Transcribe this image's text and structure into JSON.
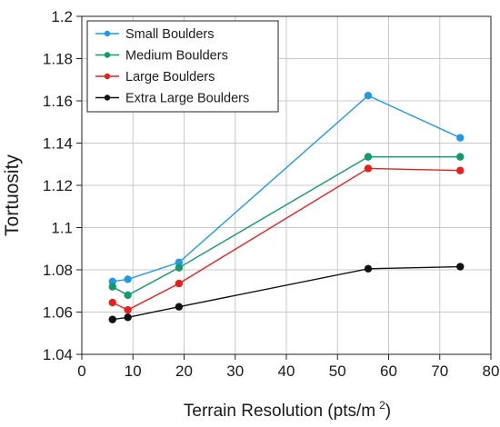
{
  "chart_data": {
    "type": "line",
    "xlabel": "Terrain Resolution (pts/m",
    "xlabel_sup": "2",
    "xlabel_suffix": ")",
    "ylabel": "Tortuosity",
    "xlim": [
      0,
      80
    ],
    "ylim": [
      1.04,
      1.2
    ],
    "x_ticks": [
      0,
      10,
      20,
      30,
      40,
      50,
      60,
      70,
      80
    ],
    "y_ticks": [
      1.04,
      1.06,
      1.08,
      1.1,
      1.12,
      1.14,
      1.16,
      1.18,
      1.2
    ],
    "x_tick_labels": [
      "0",
      "10",
      "20",
      "30",
      "40",
      "50",
      "60",
      "70",
      "80"
    ],
    "y_tick_labels": [
      "1.04",
      "1.06",
      "1.08",
      "1.1",
      "1.12",
      "1.14",
      "1.16",
      "1.18",
      "1.2"
    ],
    "grid": true,
    "legend_position": "top-left",
    "series": [
      {
        "name": "Small Boulders",
        "color": "#1f9be6",
        "x": [
          6,
          9,
          19,
          56,
          74
        ],
        "y": [
          1.0745,
          1.0755,
          1.0835,
          1.1625,
          1.1425
        ]
      },
      {
        "name": "Medium Boulders",
        "color": "#119a6b",
        "x": [
          6,
          9,
          19,
          56,
          74
        ],
        "y": [
          1.072,
          1.068,
          1.081,
          1.1335,
          1.1335
        ]
      },
      {
        "name": "Large Boulders",
        "color": "#e8201c",
        "x": [
          6,
          9,
          19,
          56,
          74
        ],
        "y": [
          1.0645,
          1.061,
          1.0735,
          1.128,
          1.127
        ]
      },
      {
        "name": "Extra Large Boulders",
        "color": "#111111",
        "x": [
          6,
          9,
          19,
          56,
          74
        ],
        "y": [
          1.0565,
          1.0575,
          1.0625,
          1.0805,
          1.0815
        ]
      }
    ]
  }
}
